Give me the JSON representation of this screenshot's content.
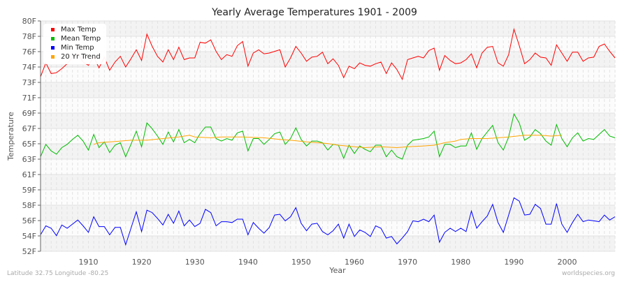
{
  "chart_data": {
    "type": "line",
    "title": "Yearly Average Temperatures 1901 - 2009",
    "xlabel": "Year",
    "ylabel": "Temperature",
    "xlim": [
      1901,
      2009
    ],
    "ylim": [
      52,
      80
    ],
    "x_ticks": [
      1910,
      1920,
      1930,
      1940,
      1950,
      1960,
      1970,
      1980,
      1990,
      2000
    ],
    "y_ticks": [
      {
        "value": 80.0,
        "label": "80F"
      },
      {
        "value": 78.13,
        "label": "78F"
      },
      {
        "value": 76.27,
        "label": "76F"
      },
      {
        "value": 74.4,
        "label": "74F"
      },
      {
        "value": 72.53,
        "label": "73F"
      },
      {
        "value": 70.67,
        "label": "71F"
      },
      {
        "value": 68.8,
        "label": "69F"
      },
      {
        "value": 66.93,
        "label": "67F"
      },
      {
        "value": 65.07,
        "label": "65F"
      },
      {
        "value": 63.2,
        "label": "63F"
      },
      {
        "value": 61.33,
        "label": "61F"
      },
      {
        "value": 59.47,
        "label": "59F"
      },
      {
        "value": 57.6,
        "label": "58F"
      },
      {
        "value": 55.73,
        "label": "56F"
      },
      {
        "value": 53.87,
        "label": "54F"
      },
      {
        "value": 52.0,
        "label": "52F"
      }
    ],
    "grid": true,
    "legend_position": "top-left",
    "x_start": 1901,
    "series": [
      {
        "name": "Max Temp",
        "color": "#ff0000",
        "values": [
          73.2,
          74.9,
          73.6,
          73.7,
          74.2,
          74.8,
          75.6,
          76.0,
          75.0,
          74.6,
          75.6,
          74.3,
          75.6,
          74.0,
          75.0,
          75.7,
          74.4,
          75.4,
          76.5,
          75.2,
          78.4,
          76.9,
          75.7,
          75.0,
          76.5,
          75.3,
          76.8,
          75.3,
          75.5,
          75.5,
          77.4,
          77.3,
          77.7,
          76.3,
          75.3,
          75.9,
          75.7,
          77.0,
          77.5,
          74.5,
          76.1,
          76.5,
          76.0,
          76.1,
          76.3,
          76.5,
          74.4,
          75.5,
          76.9,
          76.1,
          75.1,
          75.6,
          75.7,
          76.2,
          74.8,
          75.4,
          74.6,
          73.1,
          74.5,
          74.2,
          74.9,
          74.6,
          74.5,
          74.8,
          75.0,
          73.6,
          74.9,
          74.1,
          72.9,
          75.3,
          75.5,
          75.7,
          75.5,
          76.4,
          76.7,
          74.0,
          75.8,
          75.2,
          74.8,
          74.9,
          75.3,
          76.0,
          74.3,
          76.1,
          76.8,
          76.9,
          74.9,
          74.5,
          75.9,
          79.0,
          77.0,
          74.8,
          75.3,
          76.1,
          75.6,
          75.5,
          74.6,
          77.1,
          76.1,
          75.1,
          76.2,
          76.2,
          75.1,
          75.5,
          75.6,
          76.9,
          77.2,
          76.3,
          75.5
        ]
      },
      {
        "name": "Mean Temp",
        "color": "#00bb00",
        "values": [
          63.5,
          65.0,
          64.2,
          63.8,
          64.6,
          65.0,
          65.6,
          66.1,
          65.4,
          64.3,
          66.2,
          64.6,
          65.3,
          64.0,
          64.9,
          65.2,
          63.5,
          65.0,
          66.6,
          64.7,
          67.6,
          66.9,
          66.0,
          65.0,
          66.5,
          65.3,
          66.8,
          65.2,
          65.6,
          65.2,
          66.3,
          67.1,
          67.1,
          65.7,
          65.4,
          65.7,
          65.5,
          66.4,
          66.6,
          64.2,
          65.7,
          65.7,
          65.0,
          65.6,
          66.3,
          66.5,
          65.0,
          65.7,
          67.0,
          65.6,
          64.8,
          65.4,
          65.4,
          65.2,
          64.3,
          65.0,
          64.9,
          63.3,
          64.9,
          63.9,
          64.8,
          64.4,
          64.1,
          64.9,
          64.9,
          63.5,
          64.3,
          63.5,
          63.2,
          64.9,
          65.5,
          65.6,
          65.7,
          65.9,
          66.6,
          63.5,
          65.0,
          65.0,
          64.6,
          64.8,
          64.8,
          66.4,
          64.4,
          65.7,
          66.5,
          67.3,
          65.2,
          64.3,
          65.9,
          68.7,
          67.6,
          65.5,
          65.9,
          66.8,
          66.3,
          65.4,
          64.9,
          67.4,
          65.7,
          64.7,
          65.8,
          66.4,
          65.4,
          65.7,
          65.6,
          66.2,
          66.8,
          66.0,
          65.8
        ]
      },
      {
        "name": "Min Temp",
        "color": "#0000ff",
        "values": [
          54.0,
          55.1,
          54.8,
          53.9,
          55.2,
          54.8,
          55.3,
          55.8,
          55.1,
          54.3,
          56.2,
          55.0,
          55.0,
          54.0,
          54.9,
          54.9,
          52.8,
          54.8,
          56.8,
          54.4,
          57.0,
          56.7,
          56.0,
          55.2,
          56.5,
          55.4,
          56.9,
          55.1,
          55.8,
          55.0,
          55.4,
          57.1,
          56.7,
          55.1,
          55.6,
          55.6,
          55.5,
          55.9,
          55.9,
          54.0,
          55.5,
          54.8,
          54.2,
          54.9,
          56.4,
          56.5,
          55.7,
          56.2,
          57.3,
          55.4,
          54.5,
          55.3,
          55.4,
          54.4,
          54.0,
          54.5,
          55.3,
          53.6,
          55.3,
          53.8,
          54.6,
          54.3,
          53.8,
          55.1,
          54.8,
          53.6,
          53.8,
          52.9,
          53.6,
          54.4,
          55.7,
          55.6,
          55.9,
          55.6,
          56.4,
          53.1,
          54.3,
          54.8,
          54.4,
          54.8,
          54.4,
          56.9,
          54.8,
          55.6,
          56.3,
          57.7,
          55.5,
          54.3,
          56.4,
          58.5,
          58.1,
          56.4,
          56.5,
          57.7,
          57.2,
          55.3,
          55.3,
          57.8,
          55.3,
          54.3,
          55.5,
          56.5,
          55.6,
          55.8,
          55.7,
          55.6,
          56.4,
          55.8,
          56.2
        ]
      },
      {
        "name": "20 Yr Trend",
        "color": "#ffa500",
        "x": [
          1911,
          1912,
          1915,
          1918,
          1921,
          1924,
          1927,
          1929,
          1930,
          1933,
          1935,
          1939,
          1943,
          1946,
          1948,
          1951,
          1955,
          1957,
          1960,
          1962,
          1965,
          1968,
          1970,
          1973,
          1975,
          1977,
          1979,
          1980,
          1982,
          1985,
          1987,
          1989,
          1992,
          1995,
          1997,
          1999
        ],
        "values": [
          65.0,
          65.2,
          65.35,
          65.5,
          65.5,
          65.7,
          65.9,
          66.1,
          65.9,
          65.8,
          65.9,
          65.9,
          65.8,
          65.6,
          65.5,
          65.3,
          65.1,
          64.9,
          64.7,
          64.6,
          64.7,
          64.6,
          64.7,
          64.8,
          64.9,
          65.2,
          65.4,
          65.6,
          65.7,
          65.7,
          65.8,
          65.9,
          66.1,
          66.1,
          66.0,
          66.1
        ]
      }
    ]
  },
  "footer": {
    "location": "Latitude 32.75 Longitude -80.25",
    "source": "worldspecies.org"
  }
}
